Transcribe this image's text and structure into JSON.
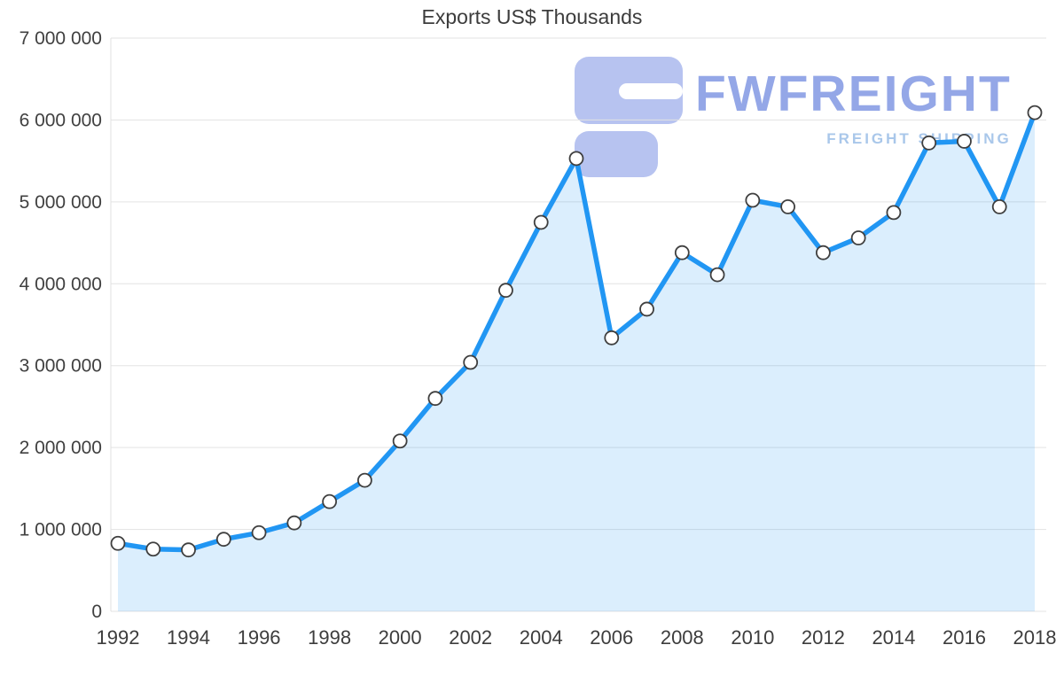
{
  "page": {
    "background": "#ffffff"
  },
  "watermark": {
    "brand": "FWFREIGHT",
    "tagline": "FREIGHT SHIPPING",
    "logo_color": "#aab8ed",
    "brand_color": "#7d94e2",
    "tagline_color": "#a9c7ea"
  },
  "chart_data": {
    "type": "area",
    "title": "Exports US$ Thousands",
    "xlabel": "",
    "ylabel": "",
    "legend": "none",
    "grid": true,
    "ylim": [
      0,
      7000000
    ],
    "x": [
      1992,
      1993,
      1994,
      1995,
      1996,
      1997,
      1998,
      1999,
      2000,
      2001,
      2002,
      2003,
      2004,
      2005,
      2006,
      2007,
      2008,
      2009,
      2010,
      2011,
      2012,
      2013,
      2014,
      2015,
      2016,
      2017,
      2018
    ],
    "values": [
      830000,
      760000,
      750000,
      880000,
      960000,
      1080000,
      1340000,
      1600000,
      2080000,
      2600000,
      3040000,
      3920000,
      4750000,
      5530000,
      3340000,
      3690000,
      4380000,
      4110000,
      5020000,
      4940000,
      4380000,
      4560000,
      4870000,
      5720000,
      5740000,
      4940000,
      6090000
    ],
    "series": [
      {
        "name": "Exports US$ Thousands",
        "values": [
          830000,
          760000,
          750000,
          880000,
          960000,
          1080000,
          1340000,
          1600000,
          2080000,
          2600000,
          3040000,
          3920000,
          4750000,
          5530000,
          3340000,
          3690000,
          4380000,
          4110000,
          5020000,
          4940000,
          4380000,
          4560000,
          4870000,
          5720000,
          5740000,
          4940000,
          6090000
        ]
      }
    ],
    "y_ticks": [
      0,
      1000000,
      2000000,
      3000000,
      4000000,
      5000000,
      6000000,
      7000000
    ],
    "y_tick_labels": [
      "0",
      "1 000 000",
      "2 000 000",
      "3 000 000",
      "4 000 000",
      "5 000 000",
      "6 000 000",
      "7 000 000"
    ],
    "x_tick_labels": [
      "1992",
      "1994",
      "1996",
      "1998",
      "2000",
      "2002",
      "2004",
      "2006",
      "2008",
      "2010",
      "2012",
      "2014",
      "2016",
      "2018"
    ],
    "line_color": "#2196f3",
    "area_opacity": 0.16,
    "marker_fill": "#ffffff",
    "marker_stroke": "#3f3f3f",
    "grid_color": "#e3e3e3",
    "axis_line_color": "#e0e0e0",
    "text_color": "#404040"
  }
}
